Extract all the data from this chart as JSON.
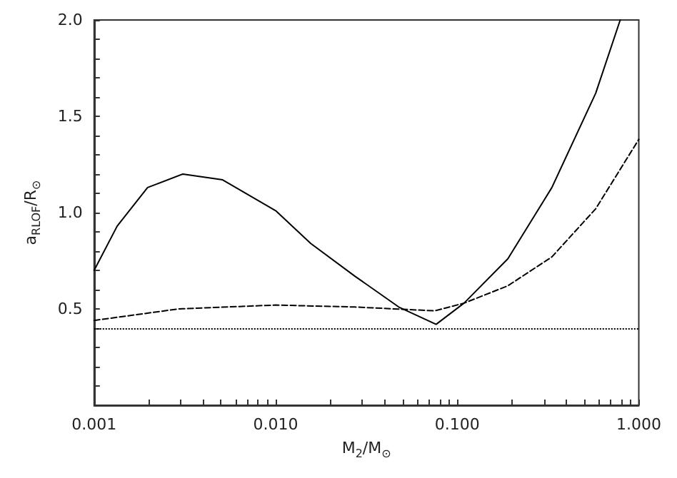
{
  "chart_data": {
    "type": "line",
    "xlabel": "M$_{2}$/M$_{⊙}$",
    "ylabel": "a$_{RLOF}$/R$_{⊙}$",
    "log": "x",
    "marker": "none",
    "grid": false,
    "xlim": [
      0.001,
      1
    ],
    "ylim": [
      0,
      2
    ],
    "xticks": [
      {
        "value": 0.001,
        "label": "0.001"
      },
      {
        "value": 0.002,
        "label": null
      },
      {
        "value": 0.003,
        "label": null
      },
      {
        "value": 0.004,
        "label": null
      },
      {
        "value": 0.005,
        "label": null
      },
      {
        "value": 0.006,
        "label": null
      },
      {
        "value": 0.007,
        "label": null
      },
      {
        "value": 0.008,
        "label": null
      },
      {
        "value": 0.009,
        "label": null
      },
      {
        "value": 0.01,
        "label": "0.010"
      },
      {
        "value": 0.02,
        "label": null
      },
      {
        "value": 0.03,
        "label": null
      },
      {
        "value": 0.04,
        "label": null
      },
      {
        "value": 0.05,
        "label": null
      },
      {
        "value": 0.06,
        "label": null
      },
      {
        "value": 0.07,
        "label": null
      },
      {
        "value": 0.08,
        "label": null
      },
      {
        "value": 0.09,
        "label": null
      },
      {
        "value": 0.1,
        "label": "0.100"
      },
      {
        "value": 0.2,
        "label": null
      },
      {
        "value": 0.3,
        "label": null
      },
      {
        "value": 0.4,
        "label": null
      },
      {
        "value": 0.5,
        "label": null
      },
      {
        "value": 0.6,
        "label": null
      },
      {
        "value": 0.7,
        "label": null
      },
      {
        "value": 0.8,
        "label": null
      },
      {
        "value": 0.9,
        "label": null
      },
      {
        "value": 1,
        "label": "1.000"
      }
    ],
    "yticks": [
      {
        "value": 0.1,
        "label": null
      },
      {
        "value": 0.2,
        "label": null
      },
      {
        "value": 0.3,
        "label": null
      },
      {
        "value": 0.4,
        "label": null
      },
      0.5,
      {
        "value": 0.6,
        "label": null
      },
      {
        "value": 0.7,
        "label": null
      },
      {
        "value": 0.8,
        "label": null
      },
      {
        "value": 0.9,
        "label": null
      },
      {
        "value": 1,
        "label": "1.0"
      },
      {
        "value": 1.1,
        "label": null
      },
      {
        "value": 1.2,
        "label": null
      },
      {
        "value": 1.3,
        "label": null
      },
      {
        "value": 1.4,
        "label": null
      },
      1.5,
      {
        "value": 1.6,
        "label": null
      },
      {
        "value": 1.7,
        "label": null
      },
      {
        "value": 1.8,
        "label": null
      },
      {
        "value": 1.9,
        "label": null
      },
      {
        "value": 2,
        "label": "2.0"
      }
    ],
    "series": [
      {
        "color": "#000000",
        "line_style": "solid",
        "x": [
          0.001,
          0.00134,
          0.00197,
          0.00308,
          0.0051,
          0.01,
          0.0156,
          0.0273,
          0.0476,
          0.0765,
          0.109,
          0.19,
          0.332,
          0.579,
          0.79
        ],
        "values": [
          0.7,
          0.93,
          1.13,
          1.2,
          1.17,
          1.01,
          0.84,
          0.67,
          0.51,
          0.42,
          0.53,
          0.76,
          1.13,
          1.62,
          2.0
        ]
      },
      {
        "color": "#000000",
        "line_style": "dashed",
        "x": [
          0.001,
          0.00291,
          0.01,
          0.0273,
          0.0753,
          0.109,
          0.19,
          0.332,
          0.579,
          1
        ],
        "values": [
          0.44,
          0.5,
          0.52,
          0.51,
          0.49,
          0.53,
          0.62,
          0.77,
          1.02,
          1.38
        ]
      }
    ],
    "ref_lines": [
      {
        "axis": "y",
        "value": 0.4,
        "line_style": "dotted",
        "color": "#000000"
      }
    ]
  }
}
